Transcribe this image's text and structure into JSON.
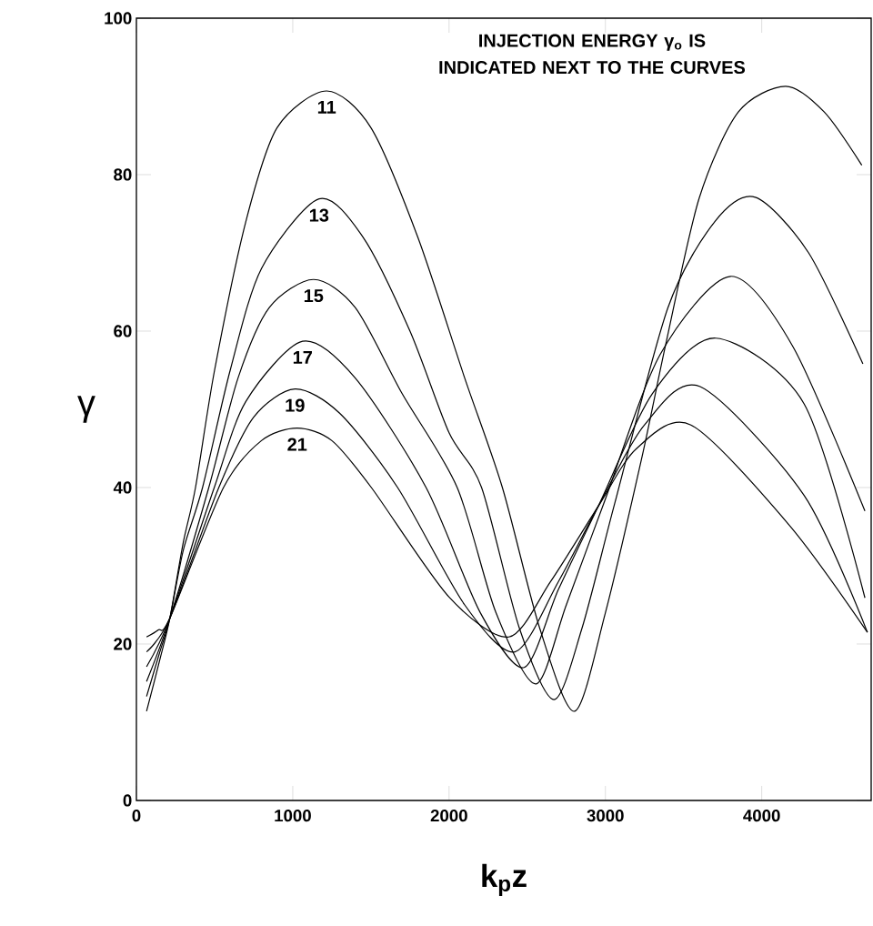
{
  "chart_data": {
    "type": "line",
    "xlabel": "k$_{p}$z",
    "ylabel": "γ",
    "annotations": [
      "INJECTION ENERGY γ$_{o}$ IS INDICATED NEXT TO THE CURVES"
    ],
    "xlim": [
      0,
      4700
    ],
    "ylim": [
      0,
      100
    ],
    "xticks": [
      0,
      1000,
      2000,
      3000,
      4000
    ],
    "yticks": [
      0,
      20,
      40,
      60,
      80,
      100
    ],
    "marker": "none",
    "line_style": "solid",
    "series": [
      {
        "name": "11",
        "color": "#000000",
        "x": [
          65,
          150,
          214,
          300,
          378,
          500,
          700,
          900,
          1217,
          1500,
          1800,
          2100,
          2341,
          2580,
          2803,
          3000,
          3235,
          3388,
          3600,
          3850,
          4153,
          4400,
          4640
        ],
        "values": [
          11.4,
          18,
          23.3,
          33,
          40,
          55,
          74,
          86,
          90.7,
          86,
          72,
          54,
          40,
          22,
          11.4,
          24,
          44,
          58.5,
          77,
          88,
          91.3,
          88,
          81.2
        ]
      },
      {
        "name": "13",
        "color": "#000000",
        "x": [
          65,
          150,
          214,
          300,
          423,
          600,
          800,
          1168,
          1450,
          1750,
          2000,
          2208,
          2450,
          2671,
          2850,
          3060,
          3400,
          3700,
          3959,
          4300,
          4647
        ],
        "values": [
          13.3,
          19,
          23.3,
          32,
          40,
          55,
          68,
          76.9,
          72,
          60,
          47,
          40,
          22,
          12.9,
          22,
          38,
          63,
          74,
          77.1,
          70,
          55.8
        ]
      },
      {
        "name": "15",
        "color": "#000000",
        "x": [
          65,
          214,
          463,
          650,
          850,
          1133,
          1400,
          1700,
          2052,
          2300,
          2555,
          2750,
          2990,
          3350,
          3800,
          4200,
          4660
        ],
        "values": [
          15.2,
          23.3,
          40,
          54,
          63,
          66.6,
          63,
          52,
          40,
          24,
          14.9,
          25,
          38,
          57,
          67,
          58,
          37
        ]
      },
      {
        "name": "17",
        "color": "#000000",
        "x": [
          65,
          214,
          498,
          700,
          1063,
          1400,
          1853,
          2200,
          2480,
          2700,
          2954,
          3300,
          3706,
          4271,
          4660
        ],
        "values": [
          17.1,
          23.3,
          40,
          51,
          58.7,
          54,
          40,
          24,
          17,
          27,
          37.6,
          52,
          59.1,
          50.7,
          25.9
        ]
      },
      {
        "name": "19",
        "color": "#000000",
        "x": [
          65,
          214,
          527,
          750,
          1014,
          1300,
          1671,
          2100,
          2422,
          2700,
          2954,
          3250,
          3606,
          4271,
          4676
        ],
        "values": [
          19,
          23.3,
          40,
          49,
          52.6,
          49.5,
          40,
          25,
          19,
          28,
          37.6,
          48,
          52.9,
          39,
          21.5
        ]
      },
      {
        "name": "21",
        "color": "#000000",
        "x": [
          65,
          140,
          214,
          557,
          800,
          1028,
          1250,
          1503,
          2000,
          2382,
          2650,
          2954,
          3200,
          3547,
          4176,
          4676
        ],
        "values": [
          20.9,
          21.8,
          23.3,
          40,
          46,
          47.6,
          46,
          40,
          26,
          20.9,
          28,
          37.6,
          45,
          48,
          35.2,
          21.5
        ]
      }
    ]
  }
}
